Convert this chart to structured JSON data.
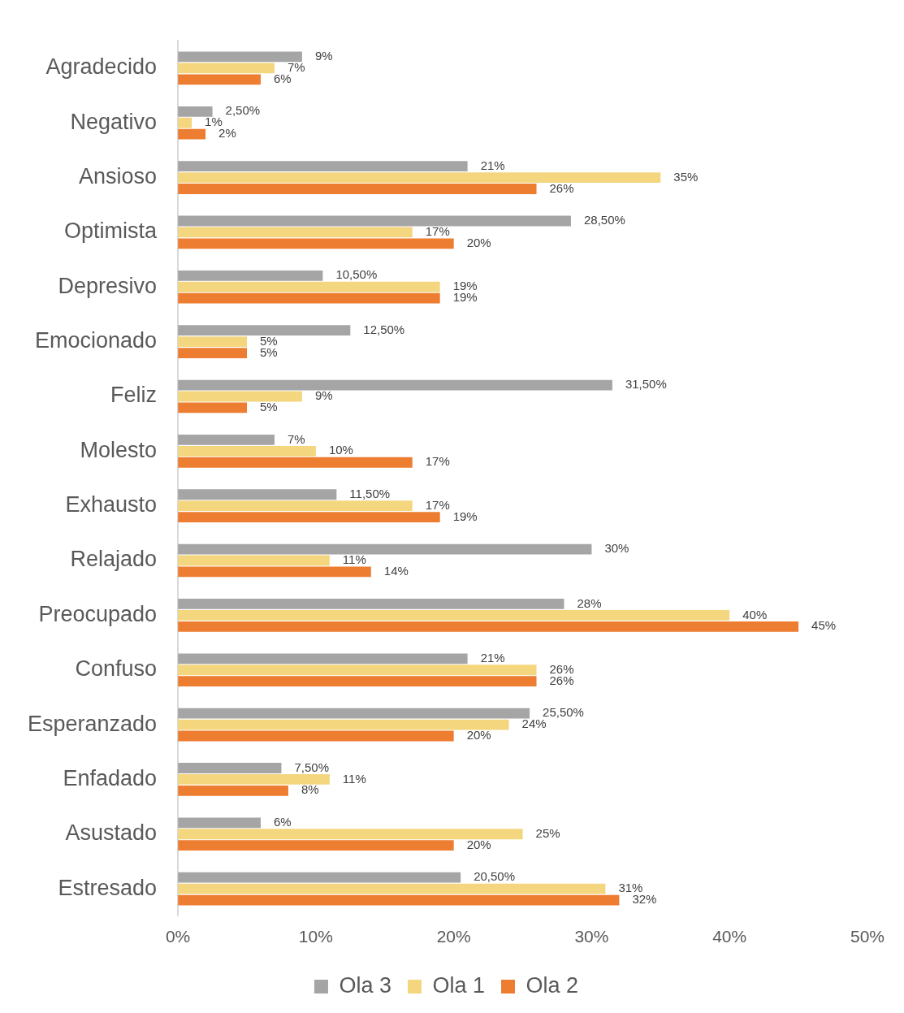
{
  "chart_data": {
    "type": "bar",
    "orientation": "horizontal",
    "categories": [
      "Agradecido",
      "Negativo",
      "Ansioso",
      "Optimista",
      "Depresivo",
      "Emocionado",
      "Feliz",
      "Molesto",
      "Exhausto",
      "Relajado",
      "Preocupado",
      "Confuso",
      "Esperanzado",
      "Enfadado",
      "Asustado",
      "Estresado"
    ],
    "series": [
      {
        "name": "Ola 3",
        "color": "#a5a5a5",
        "values": [
          9,
          2.5,
          21,
          28.5,
          10.5,
          12.5,
          31.5,
          7,
          11.5,
          30,
          28,
          21,
          25.5,
          7.5,
          6,
          20.5
        ],
        "value_labels": [
          "9%",
          "2,50%",
          "21%",
          "28,50%",
          "10,50%",
          "12,50%",
          "31,50%",
          "7%",
          "11,50%",
          "30%",
          "28%",
          "21%",
          "25,50%",
          "7,50%",
          "6%",
          "20,50%"
        ]
      },
      {
        "name": "Ola 1",
        "color": "#f4d67f",
        "values": [
          7,
          1,
          35,
          17,
          19,
          5,
          9,
          10,
          17,
          11,
          40,
          26,
          24,
          11,
          25,
          31
        ],
        "value_labels": [
          "7%",
          "1%",
          "35%",
          "17%",
          "19%",
          "5%",
          "9%",
          "10%",
          "17%",
          "11%",
          "40%",
          "26%",
          "24%",
          "11%",
          "25%",
          "31%"
        ]
      },
      {
        "name": "Ola 2",
        "color": "#ed7d31",
        "values": [
          6,
          2,
          26,
          20,
          19,
          5,
          5,
          17,
          19,
          14,
          45,
          26,
          20,
          8,
          20,
          32
        ],
        "value_labels": [
          "6%",
          "2%",
          "26%",
          "20%",
          "19%",
          "5%",
          "5%",
          "17%",
          "19%",
          "14%",
          "45%",
          "26%",
          "20%",
          "8%",
          "20%",
          "32%"
        ]
      }
    ],
    "xlim": [
      0,
      50
    ],
    "xticks": [
      {
        "value": 0,
        "label": "0%"
      },
      {
        "value": 10,
        "label": "10%"
      },
      {
        "value": 20,
        "label": "20%"
      },
      {
        "value": 30,
        "label": "30%"
      },
      {
        "value": 40,
        "label": "40%"
      },
      {
        "value": 50,
        "label": "50%"
      }
    ],
    "grid": false,
    "legend": "bottom"
  }
}
